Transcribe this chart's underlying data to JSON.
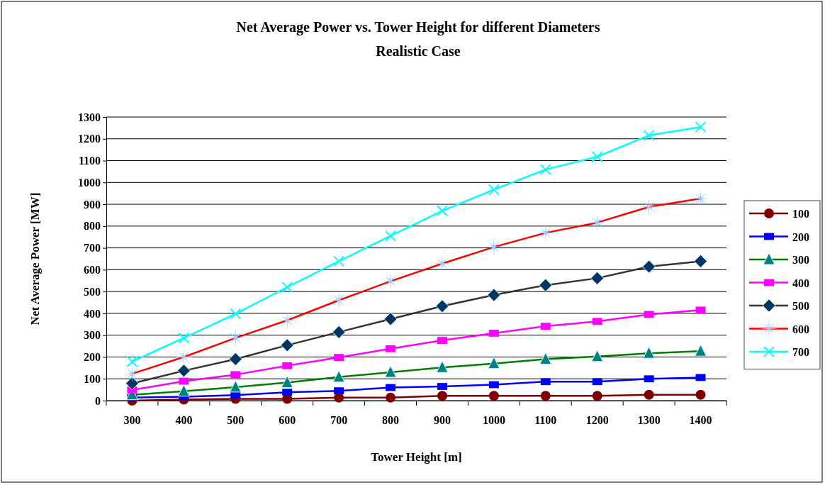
{
  "chart_data": {
    "type": "line",
    "title": "Net Average Power vs. Tower Height for different Diameters",
    "subtitle": "Realistic Case",
    "xlabel": "Tower Height [m]",
    "ylabel": "Net Average Power [MW]",
    "categories": [
      "300",
      "400",
      "500",
      "600",
      "700",
      "800",
      "900",
      "1000",
      "1100",
      "1200",
      "1300",
      "1400"
    ],
    "series": [
      {
        "name": "100",
        "color": "#800000",
        "marker": "circle",
        "values": [
          0,
          5,
          8,
          8,
          14,
          14,
          22,
          22,
          22,
          22,
          27,
          27
        ]
      },
      {
        "name": "200",
        "color": "#0000ff",
        "marker": "square",
        "values": [
          14,
          18,
          25,
          38,
          45,
          60,
          65,
          73,
          87,
          87,
          100,
          106
        ]
      },
      {
        "name": "300",
        "color": "#008000",
        "marker": "triangle",
        "values": [
          27,
          43,
          62,
          83,
          108,
          130,
          152,
          170,
          190,
          202,
          217,
          227
        ]
      },
      {
        "name": "400",
        "color": "#ff00ff",
        "marker": "square",
        "values": [
          49,
          89,
          119,
          160,
          198,
          238,
          276,
          309,
          341,
          363,
          395,
          415
        ]
      },
      {
        "name": "500",
        "color": "#333333",
        "marker": "diamond",
        "values": [
          79,
          137,
          190,
          254,
          314,
          374,
          433,
          484,
          529,
          561,
          614,
          639
        ]
      },
      {
        "name": "600",
        "color": "#ff0000",
        "marker": "star",
        "values": [
          123,
          200,
          287,
          368,
          460,
          547,
          628,
          704,
          769,
          816,
          888,
          926
        ]
      },
      {
        "name": "700",
        "color": "#00ffff",
        "marker": "cross",
        "values": [
          179,
          287,
          398,
          520,
          639,
          755,
          870,
          967,
          1059,
          1118,
          1216,
          1254
        ]
      }
    ],
    "ylim": [
      0,
      1300
    ],
    "yticks": [
      0,
      100,
      200,
      300,
      400,
      500,
      600,
      700,
      800,
      900,
      1000,
      1100,
      1200,
      1300
    ],
    "grid": "y",
    "legend": "right",
    "line_style": "solid"
  }
}
